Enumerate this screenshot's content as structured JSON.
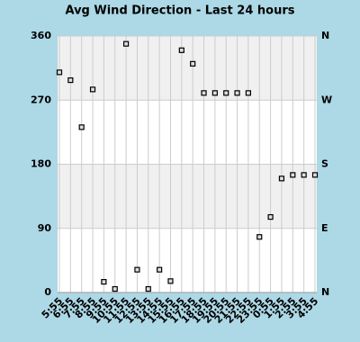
{
  "chart_data": {
    "type": "scatter",
    "title": "Avg Wind Direction - Last 24 hours",
    "categories": [
      "5:55",
      "6:55",
      "7:55",
      "8:55",
      "9:55",
      "10:55",
      "11:55",
      "12:55",
      "13:55",
      "14:55",
      "15:55",
      "16:55",
      "17:55",
      "18:55",
      "19:55",
      "20:55",
      "21:55",
      "22:55",
      "23:55",
      "0:55",
      "1:55",
      "2:55",
      "3:55",
      "4:55"
    ],
    "values": [
      309,
      298,
      232,
      285,
      15,
      5,
      349,
      32,
      5,
      32,
      16,
      340,
      321,
      280,
      280,
      280,
      280,
      280,
      78,
      106,
      160,
      165,
      165,
      165
    ],
    "color": "#000000",
    "ylim": [
      0,
      360
    ],
    "yticks": [
      0,
      90,
      180,
      270,
      360
    ],
    "y2lim": [
      0,
      360
    ],
    "y2ticks": [
      {
        "value": 0,
        "label": "N"
      },
      {
        "value": 90,
        "label": "E"
      },
      {
        "value": 180,
        "label": "S"
      },
      {
        "value": 270,
        "label": "W"
      },
      {
        "value": 360,
        "label": "N"
      }
    ],
    "grid": true
  }
}
